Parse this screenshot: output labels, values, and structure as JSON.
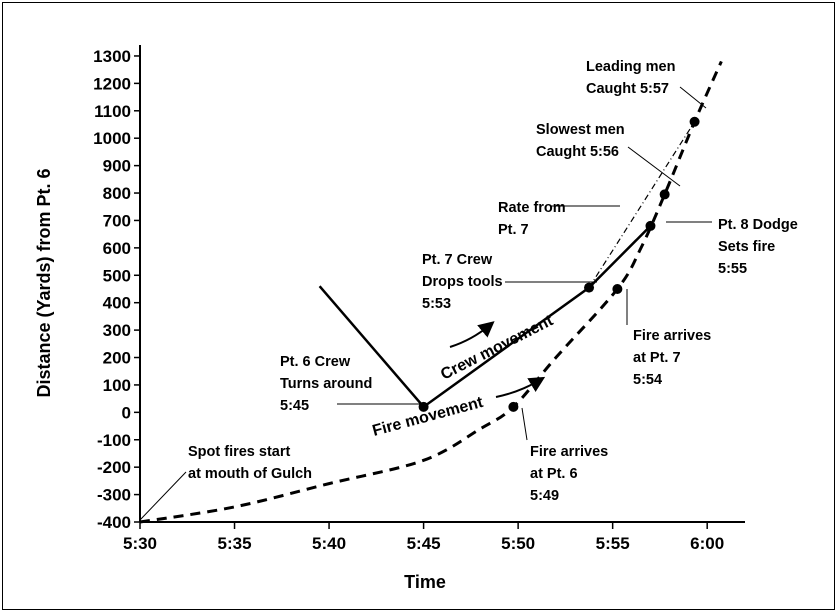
{
  "chart_data": {
    "type": "line",
    "title": "",
    "xlabel": "Time",
    "ylabel": "Distance (Yards) from Pt. 6",
    "x_ticks": [
      "5:30",
      "5:35",
      "5:40",
      "5:45",
      "5:50",
      "5:55",
      "6:00"
    ],
    "y_ticks": [
      1300,
      1200,
      1100,
      1000,
      900,
      800,
      700,
      600,
      500,
      400,
      300,
      200,
      100,
      0,
      -100,
      -200,
      -300,
      -400
    ],
    "xlim": [
      "5:30",
      "6:02"
    ],
    "ylim": [
      -400,
      1340
    ],
    "grid": false,
    "series": [
      {
        "name": "Fire movement",
        "style": "dashed",
        "points": [
          {
            "x": "5:30",
            "y": -400
          },
          {
            "x": "5:35",
            "y": -345
          },
          {
            "x": "5:40",
            "y": -260
          },
          {
            "x": "5:45",
            "y": -175
          },
          {
            "x": "5:48",
            "y": -60
          },
          {
            "x": "5:49:45",
            "y": 20
          },
          {
            "x": "5:52",
            "y": 200
          },
          {
            "x": "5:55:15",
            "y": 450
          },
          {
            "x": "5:56:30",
            "y": 600
          },
          {
            "x": "5:57:45",
            "y": 795
          },
          {
            "x": "5:59:20",
            "y": 1060
          },
          {
            "x": "6:00:45",
            "y": 1280
          }
        ]
      },
      {
        "name": "Crew movement",
        "style": "solid",
        "points": [
          {
            "x": "5:39:30",
            "y": 460
          },
          {
            "x": "5:45",
            "y": 20
          },
          {
            "x": "5:53:45",
            "y": 455
          },
          {
            "x": "5:57",
            "y": 680
          }
        ]
      },
      {
        "name": "Rate from Pt. 7",
        "style": "dash-dot",
        "points": [
          {
            "x": "5:53:45",
            "y": 455
          },
          {
            "x": "5:59:20",
            "y": 1060
          }
        ]
      }
    ],
    "markers": [
      {
        "x": "5:45",
        "y": 20
      },
      {
        "x": "5:53:45",
        "y": 455
      },
      {
        "x": "5:49:45",
        "y": 20
      },
      {
        "x": "5:55:15",
        "y": 450
      },
      {
        "x": "5:57",
        "y": 680
      },
      {
        "x": "5:57:45",
        "y": 795
      },
      {
        "x": "5:59:20",
        "y": 1060
      }
    ],
    "annotations": {
      "leading_men": [
        "Leading men",
        "Caught 5:57"
      ],
      "slowest_men": [
        "Slowest men",
        "Caught 5:56"
      ],
      "rate_from": [
        "Rate from",
        "Pt. 7"
      ],
      "pt8_dodge": [
        "Pt. 8 Dodge",
        "Sets fire",
        "5:55"
      ],
      "pt7_crew": [
        "Pt. 7 Crew",
        "Drops tools",
        "5:53"
      ],
      "fire_at_pt7": [
        "Fire arrives",
        "at Pt. 7",
        "5:54"
      ],
      "pt6_crew": [
        "Pt. 6 Crew",
        "Turns around",
        "5:45"
      ],
      "spot_fires": [
        "Spot fires start",
        "at mouth of Gulch"
      ],
      "fire_at_pt6": [
        "Fire arrives",
        "at Pt. 6",
        "5:49"
      ],
      "crew_movement_label": "Crew movement",
      "fire_movement_label": "Fire movement"
    }
  }
}
